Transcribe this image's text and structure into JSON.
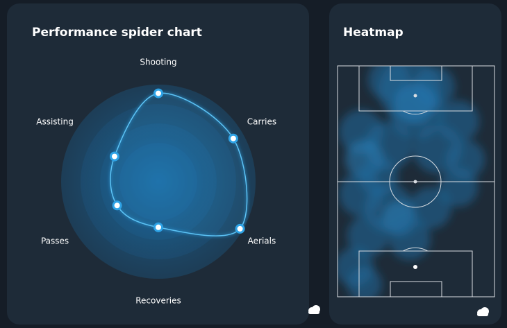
{
  "chart_data": {
    "type": "radar",
    "title": "Performance spider chart",
    "categories": [
      "Shooting",
      "Carries",
      "Aerials",
      "Recoveries",
      "Passes",
      "Assisting"
    ],
    "values": [
      91,
      89,
      97,
      47,
      49,
      52
    ],
    "rlim": [
      0,
      100
    ],
    "color": "#2ea3e6"
  },
  "heatmap": {
    "title": "Heatmap"
  }
}
